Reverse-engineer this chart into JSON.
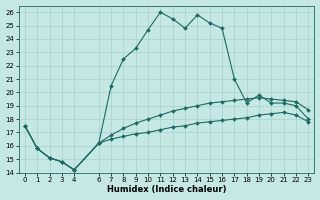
{
  "title": "",
  "xlabel": "Humidex (Indice chaleur)",
  "xlim": [
    -0.5,
    23.5
  ],
  "ylim": [
    14,
    26.5
  ],
  "yticks": [
    14,
    15,
    16,
    17,
    18,
    19,
    20,
    21,
    22,
    23,
    24,
    25,
    26
  ],
  "xticks": [
    0,
    1,
    2,
    3,
    4,
    6,
    7,
    8,
    9,
    10,
    11,
    12,
    13,
    14,
    15,
    16,
    17,
    18,
    19,
    20,
    21,
    22,
    23
  ],
  "background_color": "#c5e8e5",
  "grid_color": "#a8d0cd",
  "line_color": "#1a6b65",
  "lines": [
    {
      "x": [
        0,
        1,
        2,
        3,
        4,
        6,
        7,
        8,
        9,
        10,
        11,
        12,
        13,
        14,
        15,
        16,
        17,
        18,
        19,
        20,
        21,
        22,
        23
      ],
      "y": [
        17.5,
        15.8,
        15.1,
        14.8,
        14.2,
        16.2,
        20.5,
        22.5,
        23.3,
        24.7,
        26.0,
        25.5,
        24.8,
        25.8,
        25.2,
        24.8,
        21.0,
        19.2,
        19.8,
        19.2,
        19.2,
        19.0,
        18.0
      ]
    },
    {
      "x": [
        0,
        1,
        2,
        3,
        4,
        6,
        7,
        8,
        9,
        10,
        11,
        12,
        13,
        14,
        15,
        16,
        17,
        18,
        19,
        20,
        21,
        22,
        23
      ],
      "y": [
        17.5,
        15.8,
        15.1,
        14.8,
        14.2,
        16.2,
        16.8,
        17.3,
        17.7,
        18.0,
        18.3,
        18.6,
        18.8,
        19.0,
        19.2,
        19.3,
        19.4,
        19.5,
        19.6,
        19.5,
        19.4,
        19.3,
        18.7
      ]
    },
    {
      "x": [
        0,
        1,
        2,
        3,
        4,
        6,
        7,
        8,
        9,
        10,
        11,
        12,
        13,
        14,
        15,
        16,
        17,
        18,
        19,
        20,
        21,
        22,
        23
      ],
      "y": [
        17.5,
        15.8,
        15.1,
        14.8,
        14.2,
        16.2,
        16.5,
        16.7,
        16.9,
        17.0,
        17.2,
        17.4,
        17.5,
        17.7,
        17.8,
        17.9,
        18.0,
        18.1,
        18.3,
        18.4,
        18.5,
        18.3,
        17.8
      ]
    }
  ],
  "marker": "D",
  "markersize": 2.0,
  "linewidth": 0.8,
  "axis_fontsize": 6,
  "tick_fontsize": 5,
  "xlabel_fontsize": 6
}
